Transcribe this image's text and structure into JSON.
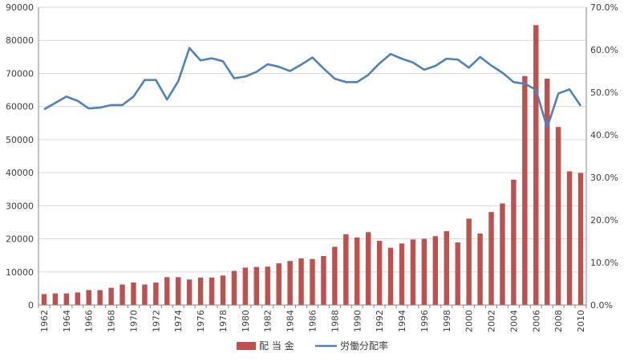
{
  "chart_data": {
    "type": "bar",
    "categories": [
      "1962",
      "1963",
      "1964",
      "1965",
      "1966",
      "1967",
      "1968",
      "1969",
      "1970",
      "1971",
      "1972",
      "1973",
      "1974",
      "1975",
      "1976",
      "1977",
      "1978",
      "1979",
      "1980",
      "1981",
      "1982",
      "1983",
      "1984",
      "1985",
      "1986",
      "1987",
      "1988",
      "1989",
      "1990",
      "1991",
      "1992",
      "1993",
      "1994",
      "1995",
      "1996",
      "1997",
      "1998",
      "1999",
      "2000",
      "2001",
      "2002",
      "2003",
      "2004",
      "2005",
      "2006",
      "2007",
      "2008",
      "2009",
      "2010"
    ],
    "x_tick_labels": [
      "1962",
      "1964",
      "1966",
      "1968",
      "1970",
      "1972",
      "1974",
      "1976",
      "1978",
      "1980",
      "1982",
      "1984",
      "1986",
      "1988",
      "1990",
      "1992",
      "1994",
      "1996",
      "1998",
      "2000",
      "2002",
      "2004",
      "2006",
      "2008",
      "2010"
    ],
    "series": [
      {
        "name": "配 当 金",
        "type": "bar",
        "axis": "left",
        "color": "#C0504D",
        "values": [
          3300,
          3500,
          3500,
          3800,
          4500,
          4500,
          5200,
          6200,
          6800,
          6200,
          6800,
          8400,
          8400,
          7700,
          8300,
          8300,
          8900,
          10300,
          11300,
          11500,
          11600,
          12600,
          13300,
          14100,
          13900,
          14800,
          17600,
          21400,
          20400,
          22000,
          19400,
          17300,
          18600,
          19800,
          20000,
          20800,
          22300,
          18900,
          26100,
          21600,
          28100,
          30700,
          37900,
          69200,
          84600,
          68400,
          53800,
          40400,
          39900
        ]
      },
      {
        "name": "労働分配率",
        "type": "line",
        "axis": "right",
        "color": "#4F81BD",
        "values": [
          46.0,
          47.5,
          49.0,
          48.0,
          46.2,
          46.4,
          47.0,
          47.0,
          49.0,
          52.9,
          52.9,
          48.3,
          52.6,
          60.4,
          57.5,
          58.0,
          57.3,
          53.3,
          53.7,
          54.8,
          56.6,
          56.0,
          55.0,
          56.5,
          58.2,
          55.6,
          53.2,
          52.4,
          52.4,
          54.1,
          56.8,
          59.0,
          57.9,
          57.0,
          55.3,
          56.2,
          57.9,
          57.7,
          55.8,
          58.3,
          56.3,
          54.6,
          52.4,
          52.0,
          50.6,
          41.7,
          49.7,
          50.7,
          46.8
        ]
      }
    ],
    "y_left": {
      "min": 0,
      "max": 90000,
      "ticks": [
        "0",
        "10000",
        "20000",
        "30000",
        "40000",
        "50000",
        "60000",
        "70000",
        "80000",
        "90000"
      ]
    },
    "y_right": {
      "min": 0,
      "max": 70,
      "unit": "%",
      "ticks": [
        "0.0%",
        "10.0%",
        "20.0%",
        "30.0%",
        "40.0%",
        "50.0%",
        "60.0%",
        "70.0%"
      ]
    },
    "grid": true,
    "legend_position": "bottom"
  }
}
